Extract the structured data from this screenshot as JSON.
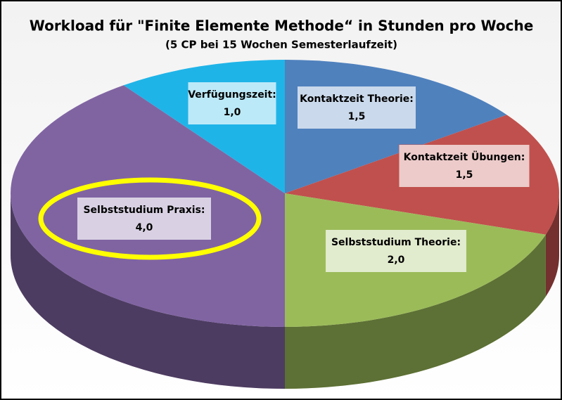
{
  "chart_data": {
    "type": "pie",
    "title": "Workload für \"Finite Elemente Methode“ in Stunden pro Woche",
    "subtitle": "(5 CP bei 15 Wochen Semesterlaufzeit)",
    "categories": [
      "Kontaktzeit Theorie:",
      "Kontaktzeit Übungen:",
      "Selbststudium Theorie:",
      "Selbststudium Praxis:",
      "Verfügungszeit:"
    ],
    "values": [
      1.5,
      1.5,
      2.0,
      4.0,
      1.0
    ],
    "value_labels": [
      "1,5",
      "1,5",
      "2,0",
      "4,0",
      "1,0"
    ],
    "colors": [
      "#4f81bd",
      "#c0504d",
      "#9bbb59",
      "#8064a2",
      "#1fb4e8"
    ]
  }
}
